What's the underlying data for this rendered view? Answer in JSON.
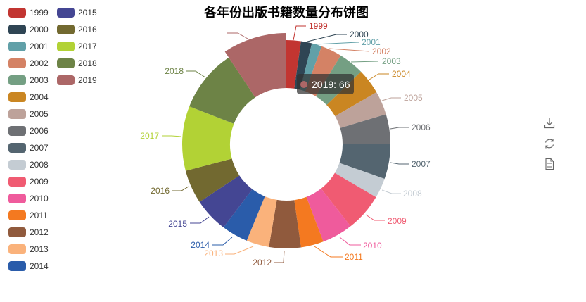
{
  "title": "各年份出版书籍数量分布饼图",
  "chart_data": {
    "type": "pie",
    "variant": "donut",
    "title": "各年份出版书籍数量分布饼图",
    "categories": [
      "1999",
      "2000",
      "2001",
      "2002",
      "2003",
      "2004",
      "2005",
      "2006",
      "2007",
      "2008",
      "2009",
      "2010",
      "2011",
      "2012",
      "2013",
      "2014",
      "2015",
      "2016",
      "2017",
      "2018",
      "2019"
    ],
    "values": [
      16,
      12,
      11,
      23,
      28,
      28,
      26,
      33,
      38,
      22,
      42,
      34,
      25,
      35,
      25,
      29,
      38,
      37,
      71,
      69,
      66
    ],
    "colors": [
      "#c23531",
      "#2f4554",
      "#61a0a8",
      "#d48265",
      "#749f83",
      "#ca8622",
      "#bda29a",
      "#6e7074",
      "#546570",
      "#c4ccd3",
      "#f05b72",
      "#ef5b9c",
      "#f47920",
      "#905a3d",
      "#fab27b",
      "#2a5caa",
      "#444693",
      "#726930",
      "#b2d235",
      "#6d8346",
      "#ac6767"
    ],
    "legend_position": "left",
    "highlighted": "2019",
    "highlighted_value": 66
  },
  "legend": {
    "items": [
      {
        "label": "1999",
        "color": "#c23531"
      },
      {
        "label": "2000",
        "color": "#2f4554"
      },
      {
        "label": "2001",
        "color": "#61a0a8"
      },
      {
        "label": "2002",
        "color": "#d48265"
      },
      {
        "label": "2003",
        "color": "#749f83"
      },
      {
        "label": "2004",
        "color": "#ca8622"
      },
      {
        "label": "2005",
        "color": "#bda29a"
      },
      {
        "label": "2006",
        "color": "#6e7074"
      },
      {
        "label": "2007",
        "color": "#546570"
      },
      {
        "label": "2008",
        "color": "#c4ccd3"
      },
      {
        "label": "2009",
        "color": "#f05b72"
      },
      {
        "label": "2010",
        "color": "#ef5b9c"
      },
      {
        "label": "2011",
        "color": "#f47920"
      },
      {
        "label": "2012",
        "color": "#905a3d"
      },
      {
        "label": "2013",
        "color": "#fab27b"
      },
      {
        "label": "2014",
        "color": "#2a5caa"
      },
      {
        "label": "2015",
        "color": "#444693"
      },
      {
        "label": "2016",
        "color": "#726930"
      },
      {
        "label": "2017",
        "color": "#b2d235"
      },
      {
        "label": "2018",
        "color": "#6d8346"
      },
      {
        "label": "2019",
        "color": "#ac6767"
      }
    ]
  },
  "tooltip": {
    "text": "2019: 66",
    "marker_color": "#ac6767"
  },
  "toolbox": {
    "icons": [
      "download-icon",
      "refresh-icon",
      "data-view-icon"
    ]
  }
}
